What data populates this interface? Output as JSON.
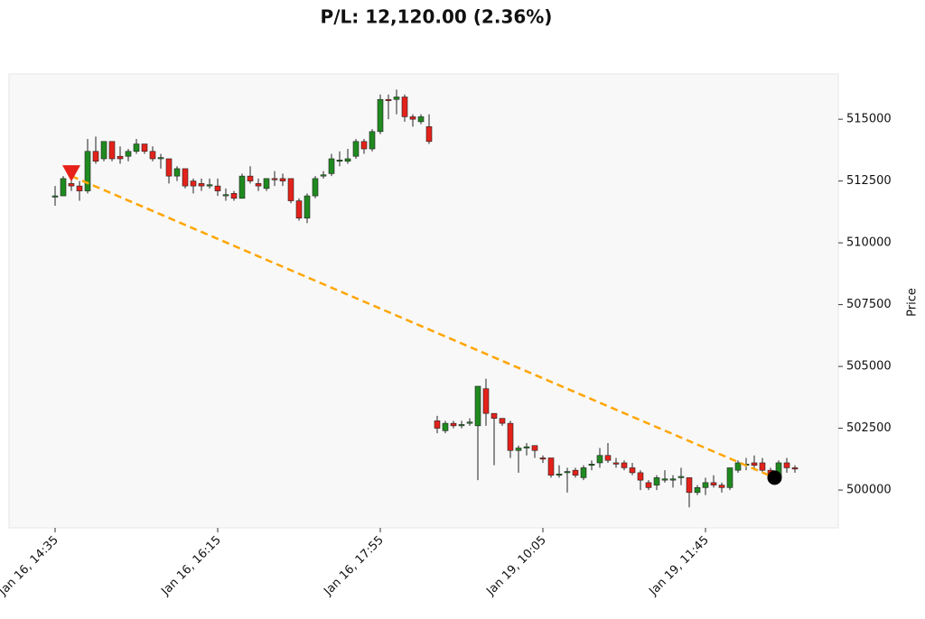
{
  "chart_data": {
    "type": "candlestick",
    "title": "P/L: 12,120.00 (2.36%)",
    "y_label": "Price",
    "categories": [
      "Jan 16, 14:35",
      null,
      null,
      null,
      null,
      null,
      null,
      null,
      null,
      null,
      null,
      null,
      null,
      null,
      null,
      null,
      null,
      null,
      null,
      null,
      "Jan 16, 16:15",
      null,
      null,
      null,
      null,
      null,
      null,
      null,
      null,
      null,
      null,
      null,
      null,
      null,
      null,
      null,
      null,
      null,
      null,
      null,
      "Jan 16, 17:55",
      null,
      null,
      null,
      null,
      null,
      null,
      null,
      null,
      null,
      null,
      null,
      null,
      null,
      null,
      null,
      null,
      null,
      null,
      null,
      "Jan 19, 10:05",
      null,
      null,
      null,
      null,
      null,
      null,
      null,
      null,
      null,
      null,
      null,
      null,
      null,
      null,
      null,
      null,
      null,
      null,
      null,
      "Jan 19, 11:45",
      null,
      null,
      null,
      null,
      null,
      null,
      null,
      null,
      null,
      null,
      null
    ],
    "open": [
      511850,
      511900,
      512400,
      512300,
      512100,
      513700,
      513400,
      514100,
      513500,
      513500,
      513700,
      514000,
      513700,
      513400,
      513400,
      512700,
      513000,
      512500,
      512400,
      512300,
      512300,
      511900,
      512000,
      511800,
      512700,
      512400,
      512200,
      512600,
      512600,
      512600,
      511700,
      511000,
      511900,
      512700,
      512800,
      513300,
      513300,
      513500,
      514100,
      513800,
      514500,
      515800,
      515800,
      515900,
      515100,
      514900,
      514700,
      502800,
      502400,
      502700,
      502600,
      502700,
      502600,
      504100,
      503100,
      502900,
      502700,
      501600,
      501700,
      501800,
      501300,
      501300,
      500600,
      500700,
      500800,
      500500,
      501000,
      501100,
      501400,
      501100,
      501100,
      500900,
      500700,
      500300,
      500200,
      500400,
      500400,
      500500,
      500500,
      499900,
      500100,
      500300,
      500200,
      500100,
      500800,
      501000,
      501100,
      501100,
      500800,
      500500,
      501100,
      500900
    ],
    "high": [
      512300,
      512700,
      512900,
      512500,
      514200,
      514300,
      514100,
      514100,
      513900,
      513800,
      514200,
      514000,
      513900,
      513600,
      513400,
      513100,
      513000,
      512600,
      512600,
      512600,
      512600,
      512200,
      512100,
      512800,
      513100,
      512600,
      512600,
      512900,
      512800,
      512600,
      511800,
      512000,
      512700,
      512900,
      513600,
      513700,
      513800,
      514200,
      514200,
      514600,
      516000,
      516000,
      516200,
      516000,
      515200,
      515200,
      515200,
      503000,
      502800,
      502800,
      502800,
      502900,
      504200,
      504500,
      503100,
      502900,
      502800,
      501800,
      501900,
      501800,
      501400,
      501300,
      501000,
      500900,
      500900,
      501000,
      501200,
      501700,
      501900,
      501300,
      501200,
      501100,
      500800,
      500400,
      500600,
      500800,
      500600,
      500900,
      500500,
      500200,
      500500,
      500600,
      500300,
      500900,
      501200,
      501300,
      501400,
      501300,
      500900,
      501200,
      501300,
      501000
    ],
    "low": [
      511500,
      511900,
      512100,
      511700,
      512000,
      513200,
      513300,
      513300,
      513200,
      513300,
      513600,
      513600,
      513300,
      513000,
      512400,
      512500,
      512200,
      512000,
      512100,
      512200,
      511900,
      511700,
      511700,
      511800,
      512400,
      512100,
      512100,
      512300,
      512300,
      511600,
      510900,
      510800,
      511800,
      512600,
      512700,
      513100,
      513200,
      513400,
      513600,
      513700,
      514400,
      515000,
      515200,
      514900,
      514700,
      514800,
      514000,
      502300,
      502300,
      502500,
      502500,
      502600,
      500400,
      502600,
      501000,
      502600,
      501300,
      500700,
      501400,
      501300,
      501100,
      500500,
      500500,
      499900,
      500500,
      500400,
      500800,
      500900,
      501100,
      500900,
      500800,
      500600,
      500000,
      500000,
      500000,
      500300,
      500100,
      500200,
      499300,
      499800,
      499800,
      500100,
      499900,
      500000,
      500700,
      500800,
      500800,
      500700,
      500300,
      500400,
      500700,
      500700
    ],
    "close": [
      511900,
      512600,
      512300,
      512100,
      513700,
      513300,
      514100,
      513400,
      513400,
      513700,
      514000,
      513700,
      513400,
      513450,
      512700,
      513000,
      512300,
      512300,
      512300,
      512350,
      512100,
      511950,
      511800,
      512700,
      512500,
      512300,
      512600,
      512550,
      512500,
      511700,
      511000,
      511900,
      512600,
      512750,
      513400,
      513350,
      513400,
      514100,
      513800,
      514500,
      515800,
      515750,
      515900,
      515100,
      515000,
      515100,
      514100,
      502500,
      502700,
      502600,
      502650,
      502750,
      504200,
      503100,
      502900,
      502700,
      501600,
      501700,
      501750,
      501600,
      501250,
      500600,
      500650,
      500750,
      500600,
      500900,
      501050,
      501400,
      501200,
      501050,
      500900,
      500700,
      500400,
      500100,
      500500,
      500450,
      500450,
      500550,
      499900,
      500100,
      500300,
      500200,
      500100,
      500900,
      501100,
      501050,
      501000,
      500800,
      500500,
      501100,
      500900,
      500850
    ],
    "up_color": "#1f8a1f",
    "down_color": "#e3221b",
    "entry": {
      "x": 2,
      "y": 512700,
      "color": "#e8201a"
    },
    "exit": {
      "x": 88.5,
      "y": 500500,
      "color": "#000000"
    },
    "trade_line_color": "#ffa500",
    "ylim": [
      498470,
      516830
    ],
    "yticks": [
      500000,
      502500,
      505000,
      507500,
      510000,
      512500,
      515000
    ]
  }
}
